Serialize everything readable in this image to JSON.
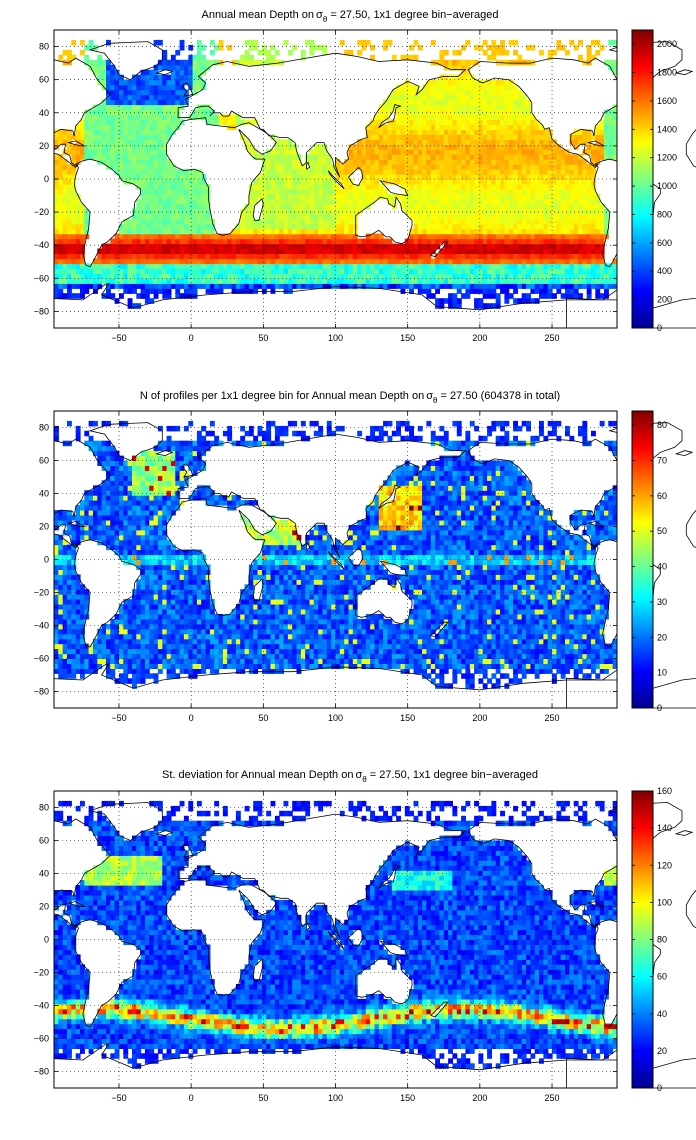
{
  "figure": {
    "panels": [
      {
        "title_prefix": "Annual mean Depth on",
        "title_symbol": "σ",
        "title_subscript": "θ",
        "title_suffix": " = 27.50, 1x1 degree bin−averaged",
        "map_layer": "depth",
        "colorbar": {
          "min": 0,
          "max": 2100,
          "ticks": [
            "0",
            "200",
            "400",
            "600",
            "800",
            "1000",
            "1200",
            "1400",
            "1600",
            "1800",
            "2000"
          ],
          "tick_values": [
            0,
            200,
            400,
            600,
            800,
            1000,
            1200,
            1400,
            1600,
            1800,
            2000
          ]
        }
      },
      {
        "title_prefix": "N of profiles per 1x1 degree bin for Annual mean Depth on",
        "title_symbol": "σ",
        "title_subscript": "θ",
        "title_suffix": " = 27.50 (604378 in total)",
        "map_layer": "count",
        "colorbar": {
          "min": 0,
          "max": 84,
          "ticks": [
            "0",
            "10",
            "20",
            "30",
            "40",
            "50",
            "60",
            "70",
            "80"
          ],
          "tick_values": [
            0,
            10,
            20,
            30,
            40,
            50,
            60,
            70,
            80
          ]
        }
      },
      {
        "title_prefix": "St. deviation for Annual mean Depth on",
        "title_symbol": "σ",
        "title_subscript": "θ",
        "title_suffix": " = 27.50, 1x1 degree bin−averaged",
        "map_layer": "stdev",
        "colorbar": {
          "min": 0,
          "max": 160,
          "ticks": [
            "0",
            "20",
            "40",
            "60",
            "80",
            "100",
            "120",
            "140",
            "160"
          ],
          "tick_values": [
            0,
            20,
            40,
            60,
            80,
            100,
            120,
            140,
            160
          ]
        }
      }
    ],
    "x_axis": {
      "range": [
        -95,
        295
      ],
      "ticks": [
        "−50",
        "0",
        "50",
        "100",
        "150",
        "200",
        "250"
      ],
      "tick_values": [
        -50,
        0,
        50,
        100,
        150,
        200,
        250
      ]
    },
    "y_axis": {
      "range": [
        -90,
        90
      ],
      "ticks": [
        "80",
        "60",
        "40",
        "20",
        "0",
        "−20",
        "−40",
        "−60",
        "−80"
      ],
      "tick_values": [
        80,
        60,
        40,
        20,
        0,
        -20,
        -40,
        -60,
        -80
      ]
    },
    "grid": "dotted",
    "colormap": "jet",
    "colormap_stops": [
      "#00008f",
      "#0000ff",
      "#007fff",
      "#00ffff",
      "#7fff7f",
      "#ffff00",
      "#ff7f00",
      "#ff0000",
      "#7f0000"
    ],
    "land_color": "#ffffff",
    "coast_color": "#000000"
  }
}
